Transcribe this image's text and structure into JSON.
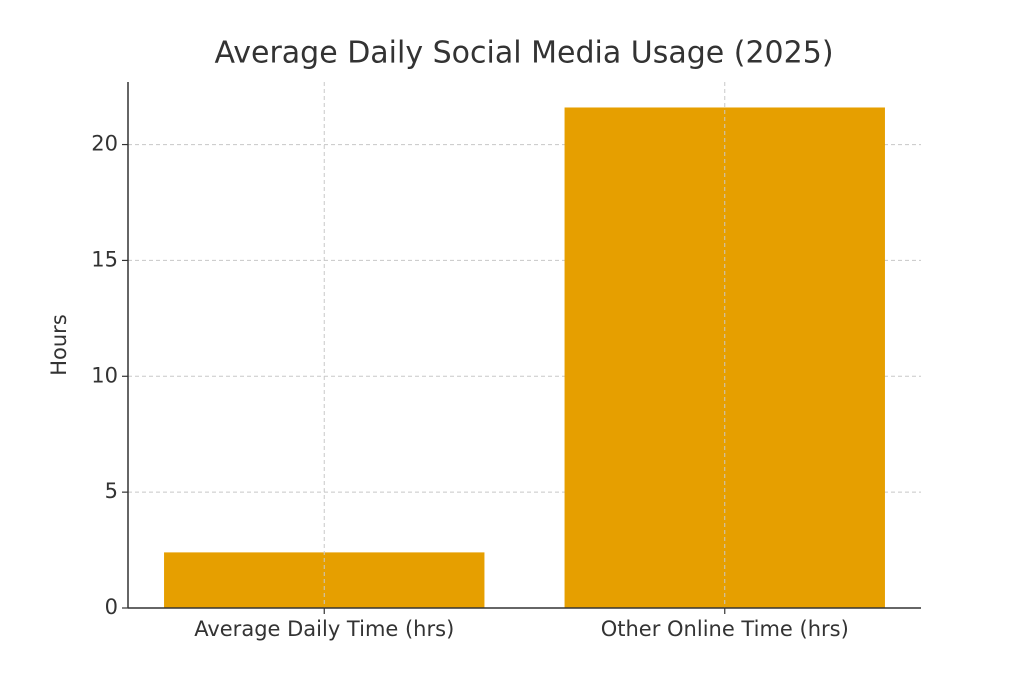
{
  "chart_data": {
    "type": "bar",
    "title": "Average Daily Social Media Usage (2025)",
    "y_label": "Hours",
    "categories": [
      "Average Daily Time (hrs)",
      "Other Online Time (hrs)"
    ],
    "values": [
      2.4,
      21.6
    ],
    "color": "#E69F00",
    "ylim": [
      0,
      22.7
    ],
    "yticks": [
      0,
      5,
      10,
      15,
      20
    ],
    "grid": true
  }
}
